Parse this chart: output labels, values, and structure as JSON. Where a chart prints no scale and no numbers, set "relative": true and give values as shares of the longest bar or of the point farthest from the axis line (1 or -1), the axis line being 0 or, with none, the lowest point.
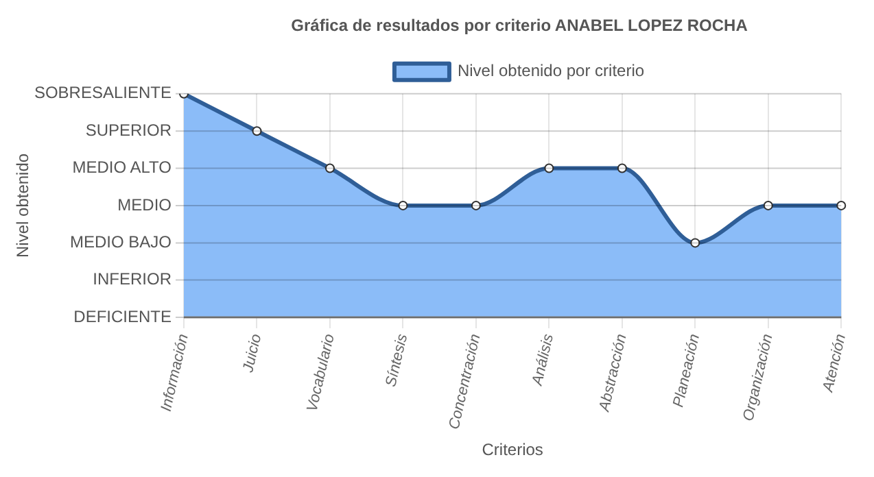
{
  "chart_data": {
    "type": "area",
    "title": "Gráfica de resultados por criterio ANABEL LOPEZ ROCHA",
    "xlabel": "Criterios",
    "annotations": [
      "Nivel obtenido"
    ],
    "categories": [
      "Información",
      "Juicio",
      "Vocabulario",
      "Síntesis",
      "Concentración",
      "Análisis",
      "Abstracción",
      "Planeación",
      "Organización",
      "Atención"
    ],
    "series": [
      {
        "name": "Nivel obtenido por criterio",
        "color": "#2f5e97",
        "values": [
          1,
          0.833,
          0.667,
          0.5,
          0.5,
          0.667,
          0.667,
          0.333,
          0.5,
          0.5
        ]
      }
    ],
    "relative": true,
    "ref_lines": [
      {
        "axis": "y",
        "value": 0,
        "label": "DEFICIENTE"
      },
      {
        "axis": "y",
        "value": 0.167,
        "label": "INFERIOR"
      },
      {
        "axis": "y",
        "value": 0.333,
        "label": "MEDIO BAJO"
      },
      {
        "axis": "y",
        "value": 0.5,
        "label": "MEDIO"
      },
      {
        "axis": "y",
        "value": 0.667,
        "label": "MEDIO ALTO"
      },
      {
        "axis": "y",
        "value": 0.833,
        "label": "SUPERIOR"
      },
      {
        "axis": "y",
        "value": 1,
        "label": "SOBRESALIENTE"
      }
    ],
    "grid": "x",
    "legend": "top",
    "marker": "circle",
    "line_style": "solid"
  }
}
